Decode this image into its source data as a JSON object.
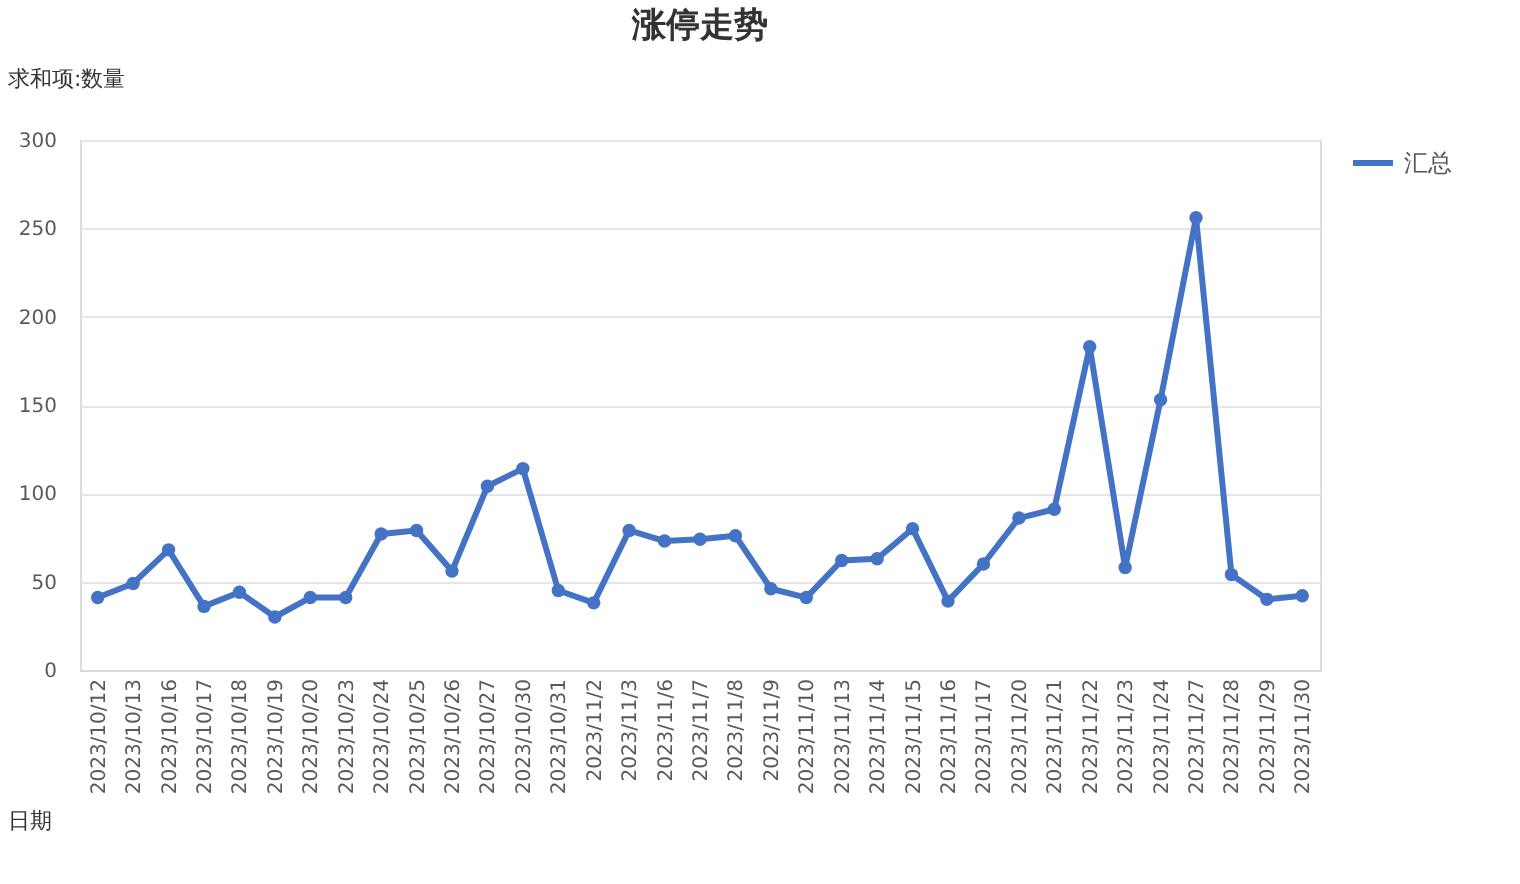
{
  "chart_data": {
    "type": "line",
    "title": "涨停走势",
    "categories": [
      "2023/10/12",
      "2023/10/13",
      "2023/10/16",
      "2023/10/17",
      "2023/10/18",
      "2023/10/19",
      "2023/10/20",
      "2023/10/23",
      "2023/10/24",
      "2023/10/25",
      "2023/10/26",
      "2023/10/27",
      "2023/10/30",
      "2023/10/31",
      "2023/11/2",
      "2023/11/3",
      "2023/11/6",
      "2023/11/7",
      "2023/11/8",
      "2023/11/9",
      "2023/11/10",
      "2023/11/13",
      "2023/11/14",
      "2023/11/15",
      "2023/11/16",
      "2023/11/17",
      "2023/11/20",
      "2023/11/21",
      "2023/11/22",
      "2023/11/23",
      "2023/11/24",
      "2023/11/27",
      "2023/11/28",
      "2023/11/29",
      "2023/11/30"
    ],
    "series": [
      {
        "name": "汇总",
        "color": "#4472c4",
        "values": [
          41,
          49,
          68,
          36,
          44,
          30,
          41,
          41,
          77,
          79,
          56,
          104,
          114,
          45,
          38,
          79,
          73,
          74,
          76,
          46,
          41,
          62,
          63,
          80,
          39,
          60,
          86,
          91,
          183,
          58,
          153,
          256,
          54,
          40,
          42
        ]
      }
    ],
    "ylim": [
      0,
      300
    ],
    "yticks": [
      0,
      50,
      100,
      150,
      200,
      250,
      300
    ],
    "grid": "y",
    "legend": "right",
    "marker": "circle",
    "line_style": "solid",
    "annotations": [
      "求和项:数量",
      "日期"
    ]
  }
}
